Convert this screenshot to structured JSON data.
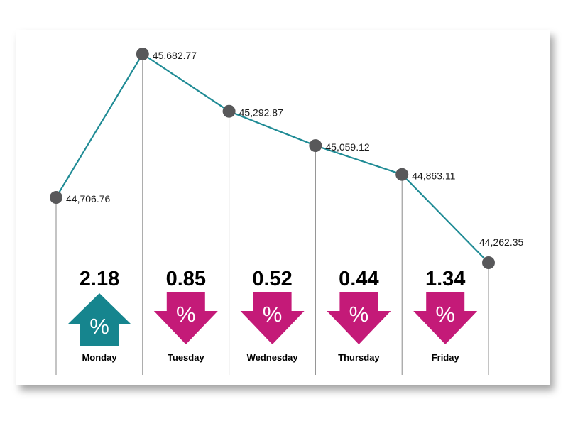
{
  "colors": {
    "line": "#1f8b95",
    "marker": "#58585a",
    "up": "#16858e",
    "down": "#c41a78",
    "gridline": "#8a8a8a"
  },
  "chart_data": {
    "type": "line",
    "categories": [
      "Monday",
      "Tuesday",
      "Wednesday",
      "Thursday",
      "Friday",
      ""
    ],
    "values": [
      44706.76,
      45682.77,
      45292.87,
      45059.12,
      44863.11,
      44262.35
    ],
    "value_labels": [
      "44,706.76",
      "45,682.77",
      "45,292.87",
      "45,059.12",
      "44,863.11",
      "44,262.35"
    ],
    "daily_change": [
      {
        "day": "Monday",
        "value": 2.18,
        "label": "2.18",
        "direction": "up",
        "icon": "up-arrow-percent-icon",
        "symbol": "%"
      },
      {
        "day": "Tuesday",
        "value": 0.85,
        "label": "0.85",
        "direction": "down",
        "icon": "down-arrow-percent-icon",
        "symbol": "%"
      },
      {
        "day": "Wednesday",
        "value": 0.52,
        "label": "0.52",
        "direction": "down",
        "icon": "down-arrow-percent-icon",
        "symbol": "%"
      },
      {
        "day": "Thursday",
        "value": 0.44,
        "label": "0.44",
        "direction": "down",
        "icon": "down-arrow-percent-icon",
        "symbol": "%"
      },
      {
        "day": "Friday",
        "value": 1.34,
        "label": "1.34",
        "direction": "down",
        "icon": "down-arrow-percent-icon",
        "symbol": "%"
      }
    ],
    "title": "",
    "xlabel": "",
    "ylabel": "",
    "grid": false,
    "legend": "none"
  }
}
